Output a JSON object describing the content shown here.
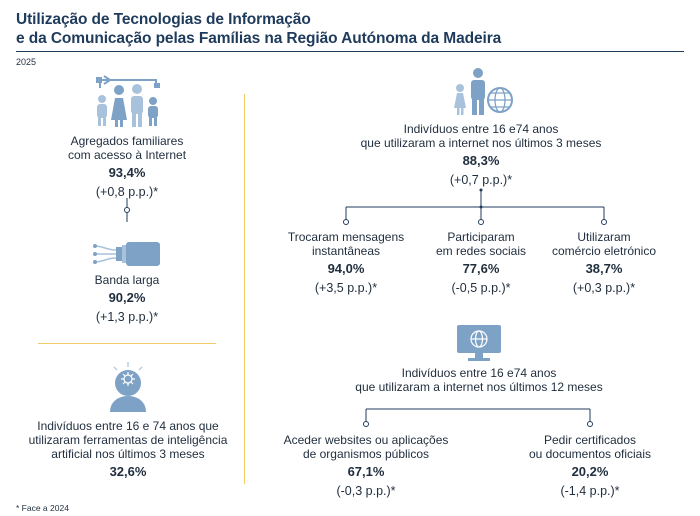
{
  "title": {
    "line1": "Utilização de Tecnologias de Informação",
    "line2": "e da Comunicação pelas Famílias na Região Autónoma da Madeira"
  },
  "year": "2025",
  "footnote": "* Face a 2024",
  "colors": {
    "navy": "#1f3b5c",
    "icon_blue": "#7ea2c6",
    "icon_light": "#a9c2dc",
    "gold": "#f1cc66"
  },
  "left": {
    "internet_access": {
      "icon": "family-icon",
      "label_lines": [
        "Agregados familiares",
        "com acesso à Internet"
      ],
      "value": "93,4%",
      "change": "(+0,8 p.p.)*"
    },
    "broadband": {
      "icon": "broadband-cable-icon",
      "label_lines": [
        "Banda larga"
      ],
      "value": "90,2%",
      "change": "(+1,3 p.p.)*"
    },
    "ai_tools": {
      "icon": "ai-head-icon",
      "label_lines": [
        "Indivíduos entre 16 e 74 anos que",
        "utilizaram ferramentas de inteligência",
        "artificial nos últimos 3 meses"
      ],
      "value": "32,6%"
    }
  },
  "right": {
    "internet_3m": {
      "icon": "people-globe-icon",
      "label_lines": [
        "Indivíduos entre 16 e74 anos",
        "que utilizaram a internet nos últimos 3 meses"
      ],
      "value": "88,3%",
      "change": "(+0,7 p.p.)*"
    },
    "messages": {
      "label_lines": [
        "Trocaram mensagens",
        "instantâneas"
      ],
      "value": "94,0%",
      "change": "(+3,5 p.p.)*"
    },
    "social": {
      "label_lines": [
        "Participaram",
        "em redes sociais"
      ],
      "value": "77,6%",
      "change": "(-0,5 p.p.)*"
    },
    "ecommerce": {
      "label_lines": [
        "Utilizaram",
        "comércio eletrónico"
      ],
      "value": "38,7%",
      "change": "(+0,3 p.p.)*"
    },
    "internet_12m": {
      "icon": "monitor-globe-icon",
      "label_lines": [
        "Indivíduos entre 16 e74 anos",
        "que utilizaram a internet nos últimos 12 meses"
      ]
    },
    "public_websites": {
      "label_lines": [
        "Aceder websites ou aplicações",
        "de organismos públicos"
      ],
      "value": "67,1%",
      "change": "(-0,3 p.p.)*"
    },
    "certificates": {
      "label_lines": [
        "Pedir certificados",
        "ou documentos oficiais"
      ],
      "value": "20,2%",
      "change": "(-1,4 p.p.)*"
    }
  }
}
